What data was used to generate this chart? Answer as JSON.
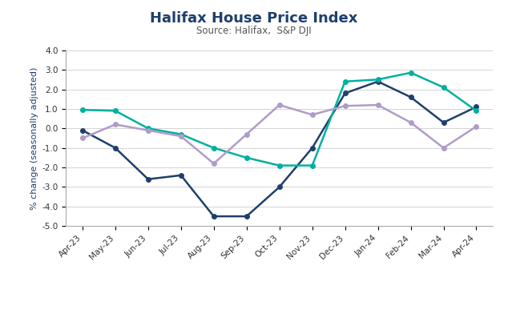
{
  "title": "Halifax House Price Index",
  "subtitle": "Source: Halifax,  S&P DJI",
  "ylabel": "% change (seasonally adjusted)",
  "categories": [
    "Apr-23",
    "May-23",
    "Jun-23",
    "Jul-23",
    "Aug-23",
    "Sep-23",
    "Oct-23",
    "Nov-23",
    "Dec-23",
    "Jan-24",
    "Feb-24",
    "Mar-24",
    "Apr-24"
  ],
  "annual": [
    -0.1,
    -1.0,
    -2.6,
    -2.4,
    -4.5,
    -4.5,
    -3.0,
    -1.0,
    1.8,
    2.4,
    1.6,
    0.3,
    1.1
  ],
  "three_month": [
    0.95,
    0.9,
    0.0,
    -0.3,
    -1.0,
    -1.5,
    -1.9,
    -1.9,
    2.4,
    2.5,
    2.85,
    2.1,
    0.9
  ],
  "monthly": [
    -0.5,
    0.2,
    -0.1,
    -0.4,
    -1.8,
    -0.3,
    1.2,
    0.7,
    1.15,
    1.2,
    0.3,
    -1.0,
    0.1
  ],
  "annual_color": "#1f3f6e",
  "three_month_color": "#00b0a0",
  "monthly_color": "#b09cc8",
  "ylim": [
    -5.0,
    4.0
  ],
  "yticks": [
    -5.0,
    -4.0,
    -3.0,
    -2.0,
    -1.0,
    0.0,
    1.0,
    2.0,
    3.0,
    4.0
  ],
  "title_fontsize": 13,
  "subtitle_fontsize": 8.5,
  "axis_label_fontsize": 8,
  "tick_fontsize": 7.5,
  "legend_fontsize": 7.5,
  "background_color": "#ffffff"
}
